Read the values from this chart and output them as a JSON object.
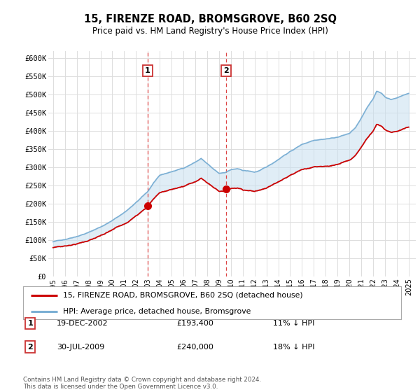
{
  "title": "15, FIRENZE ROAD, BROMSGROVE, B60 2SQ",
  "subtitle": "Price paid vs. HM Land Registry's House Price Index (HPI)",
  "legend_line1": "15, FIRENZE ROAD, BROMSGROVE, B60 2SQ (detached house)",
  "legend_line2": "HPI: Average price, detached house, Bromsgrove",
  "annotation1_date": "19-DEC-2002",
  "annotation1_price": "£193,400",
  "annotation1_hpi": "11% ↓ HPI",
  "annotation2_date": "30-JUL-2009",
  "annotation2_price": "£240,000",
  "annotation2_hpi": "18% ↓ HPI",
  "footer": "Contains HM Land Registry data © Crown copyright and database right 2024.\nThis data is licensed under the Open Government Licence v3.0.",
  "hpi_color": "#7bafd4",
  "price_color": "#cc0000",
  "marker_color": "#cc0000",
  "vline_color": "#dd4444",
  "fill_color": "#c8dff0",
  "ylim": [
    0,
    620000
  ],
  "yticks": [
    0,
    50000,
    100000,
    150000,
    200000,
    250000,
    300000,
    350000,
    400000,
    450000,
    500000,
    550000,
    600000
  ],
  "ytick_labels": [
    "£0",
    "£50K",
    "£100K",
    "£150K",
    "£200K",
    "£250K",
    "£300K",
    "£350K",
    "£400K",
    "£450K",
    "£500K",
    "£550K",
    "£600K"
  ],
  "purchase1_year": 2002.97,
  "purchase1_value": 193400,
  "purchase2_year": 2009.58,
  "purchase2_value": 240000
}
